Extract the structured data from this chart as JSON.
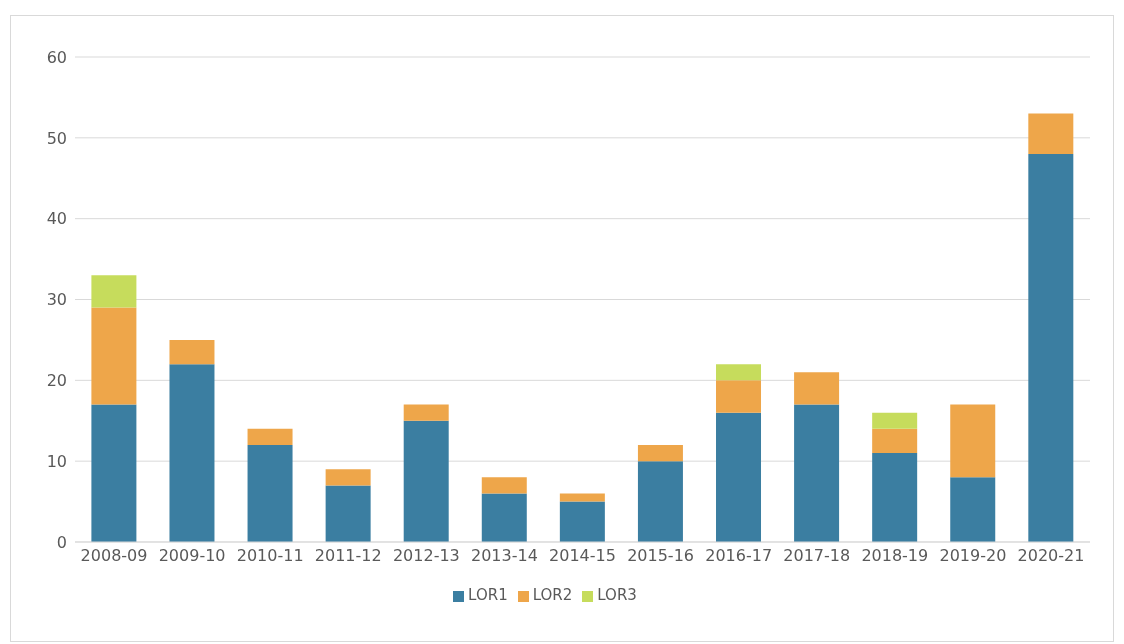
{
  "chart_data": {
    "type": "bar",
    "stacked": true,
    "categories": [
      "2008-09",
      "2009-10",
      "2010-11",
      "2011-12",
      "2012-13",
      "2013-14",
      "2014-15",
      "2015-16",
      "2016-17",
      "2017-18",
      "2018-19",
      "2019-20",
      "2020-21"
    ],
    "series": [
      {
        "name": "LOR1",
        "color": "#3b7ea1",
        "values": [
          17,
          22,
          12,
          7,
          15,
          6,
          5,
          10,
          16,
          17,
          11,
          8,
          48
        ]
      },
      {
        "name": "LOR2",
        "color": "#eea64a",
        "values": [
          12,
          3,
          2,
          2,
          2,
          2,
          1,
          2,
          4,
          4,
          3,
          9,
          5
        ]
      },
      {
        "name": "LOR3",
        "color": "#c6dc5c",
        "values": [
          4,
          null,
          null,
          null,
          null,
          null,
          null,
          null,
          2,
          null,
          2,
          null,
          null
        ]
      }
    ],
    "ylim": [
      0,
      60
    ],
    "yticks": [
      0,
      10,
      20,
      30,
      40,
      50,
      60
    ],
    "grid": "y",
    "legend": "bottom"
  }
}
